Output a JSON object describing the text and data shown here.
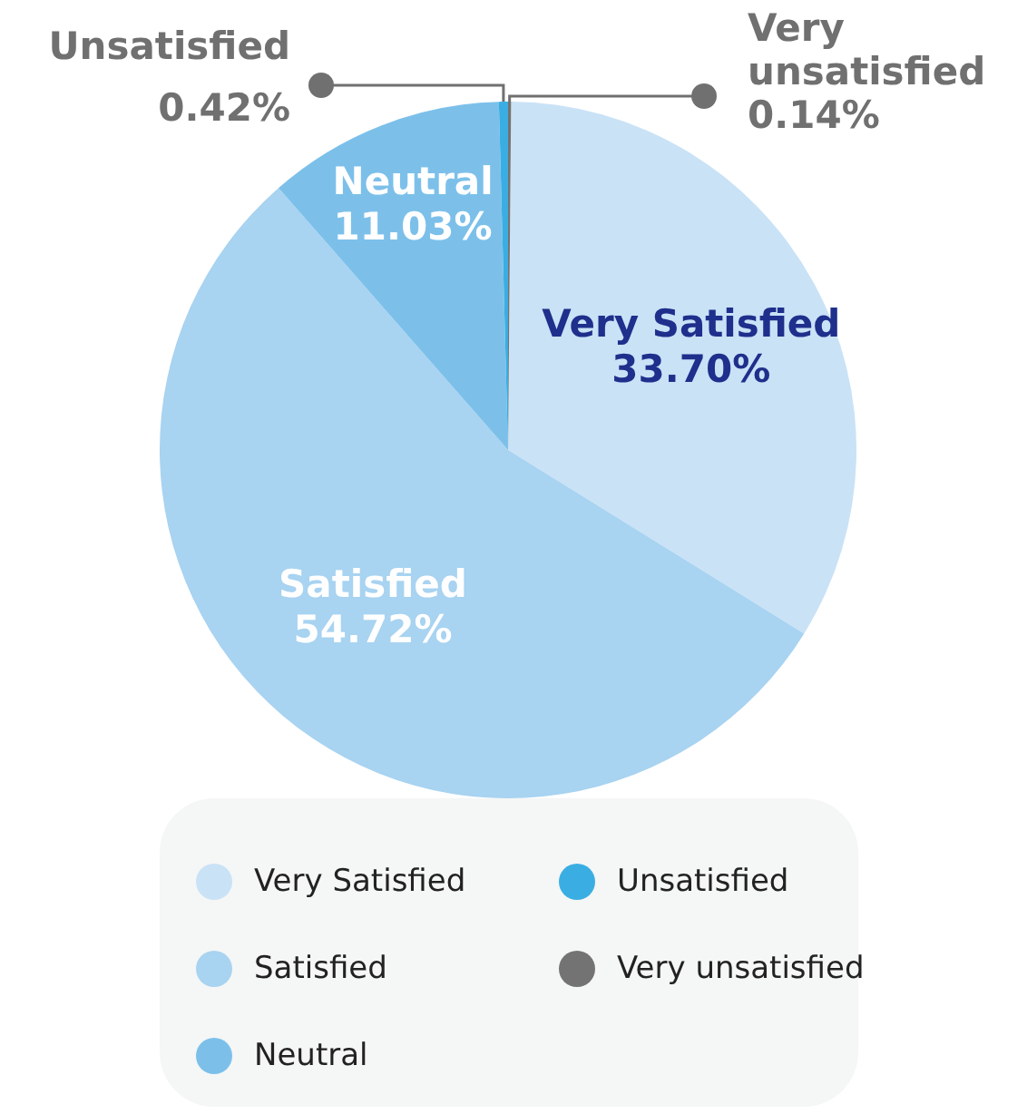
{
  "chart_data": {
    "type": "pie",
    "categories": [
      "Very Satisfied",
      "Satisfied",
      "Neutral",
      "Unsatisfied",
      "Very unsatisfied"
    ],
    "values": [
      33.7,
      54.72,
      11.03,
      0.42,
      0.14
    ],
    "value_labels": [
      "33.70%",
      "54.72%",
      "11.03%",
      "0.42%",
      "0.14%"
    ],
    "colors": [
      "#c9e2f6",
      "#a8d3f1",
      "#7cc0ea",
      "#3aaee3",
      "#737373"
    ],
    "legend": "bottom"
  }
}
